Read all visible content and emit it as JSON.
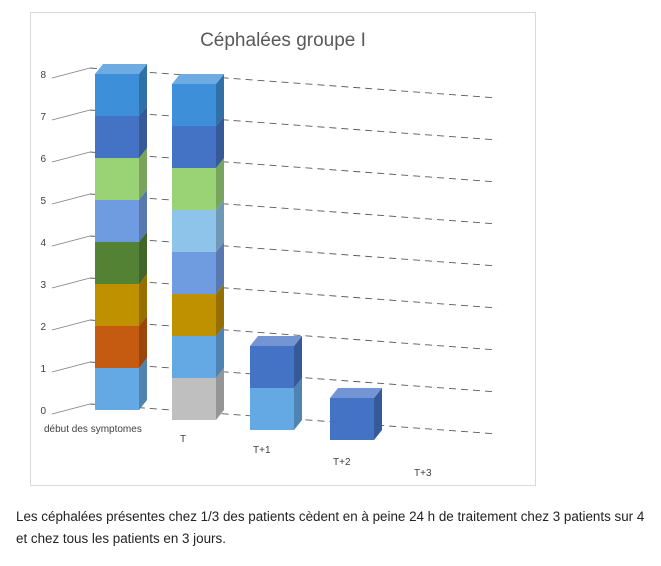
{
  "chart_data": {
    "type": "bar",
    "stacked": true,
    "three_d": true,
    "title": "Céphalées groupe I",
    "categories": [
      "début des symptomes",
      "T",
      "T+1",
      "T+2",
      "T+3"
    ],
    "ylim": [
      0,
      8
    ],
    "yticks": [
      "0",
      "1",
      "2",
      "3",
      "4",
      "5",
      "6",
      "7",
      "8"
    ],
    "grid": true,
    "legend": "none",
    "series": [
      {
        "color": "#f2f2f2",
        "values": [
          0,
          0,
          0,
          0,
          0
        ]
      },
      {
        "color": "#bfbfbf",
        "values": [
          0,
          1,
          0,
          0,
          0
        ]
      },
      {
        "color": "#64a8e4",
        "values": [
          1,
          1,
          1,
          0,
          0
        ]
      },
      {
        "color": "#c55a11",
        "values": [
          1,
          0,
          0,
          0,
          0
        ]
      },
      {
        "color": "#bf9000",
        "values": [
          1,
          1,
          0,
          0,
          0
        ]
      },
      {
        "color": "#548235",
        "values": [
          1,
          0,
          0,
          0,
          0
        ]
      },
      {
        "color": "#6f9be0",
        "values": [
          1,
          1,
          0,
          0,
          0
        ]
      },
      {
        "color": "#8ec3ea",
        "values": [
          0,
          1,
          0,
          0,
          0
        ]
      },
      {
        "color": "#9ad375",
        "values": [
          1,
          1,
          0,
          0,
          0
        ]
      },
      {
        "color": "#4472c4",
        "values": [
          1,
          1,
          1,
          1,
          0
        ]
      },
      {
        "color": "#3c8fd8",
        "values": [
          1,
          1,
          0,
          0,
          0
        ]
      }
    ]
  },
  "caption": "Les céphalées présentes chez 1/3 des patients cèdent en à peine 24 h de traitement chez 3 patients sur 4 et chez tous les patients en 3 jours."
}
